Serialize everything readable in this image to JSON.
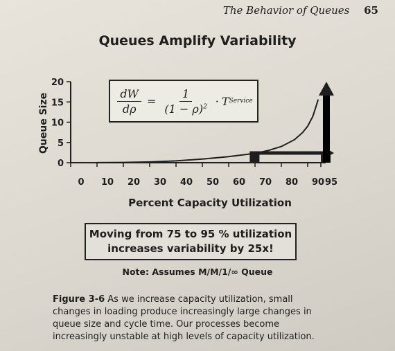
{
  "header": {
    "running_title": "The Behavior of Queues",
    "page_number": "65"
  },
  "figure_title": "Queues Amplify Variability",
  "formula": {
    "lhs_num": "dW",
    "lhs_den": "dρ",
    "equals": "=",
    "rhs_num": "1",
    "rhs_den": "(1 − ρ)",
    "rhs_exp": "2",
    "times": "·",
    "t": "T",
    "t_sub": "Service"
  },
  "callout": {
    "line1": "Moving from 75 to 95 % utilization",
    "line2": "increases variability by 25x!"
  },
  "note": "Note: Assumes M/M/1/∞ Queue",
  "caption": {
    "label": "Figure 3-6",
    "text": " As we increase capacity utilization, small changes in loading produce increasingly large changes in queue size and cycle time. Our processes become increasingly unstable at high levels of capacity utilization."
  },
  "colors": {
    "ink": "#1e1e1e",
    "paper": "#e2dfd7"
  },
  "chart_data": {
    "type": "line",
    "xlabel": "Percent Capacity Utilization",
    "ylabel": "Queue Size",
    "x_ticks": [
      "0",
      "10",
      "20",
      "30",
      "40",
      "50",
      "60",
      "70",
      "80",
      "90",
      "95"
    ],
    "y_ticks": [
      "0",
      "5",
      "10",
      "15",
      "20"
    ],
    "ylim": [
      0,
      20
    ],
    "curve_x": [
      10,
      20,
      30,
      40,
      50,
      60,
      65,
      70,
      75,
      80,
      85,
      88,
      90,
      92,
      94
    ],
    "curve_y": [
      0.01,
      0.06,
      0.18,
      0.44,
      0.9,
      1.5,
      1.9,
      2.3,
      3,
      4,
      5.7,
      7.4,
      9,
      11.5,
      15.6
    ],
    "annotations": [
      {
        "at": 68,
        "shape": "block"
      },
      {
        "at": 95,
        "shape": "block"
      },
      {
        "from": 68,
        "to": 100,
        "shape": "horizontal-arrow"
      },
      {
        "at": 95,
        "from": 0,
        "to": 20,
        "shape": "vertical-arrow"
      }
    ]
  }
}
